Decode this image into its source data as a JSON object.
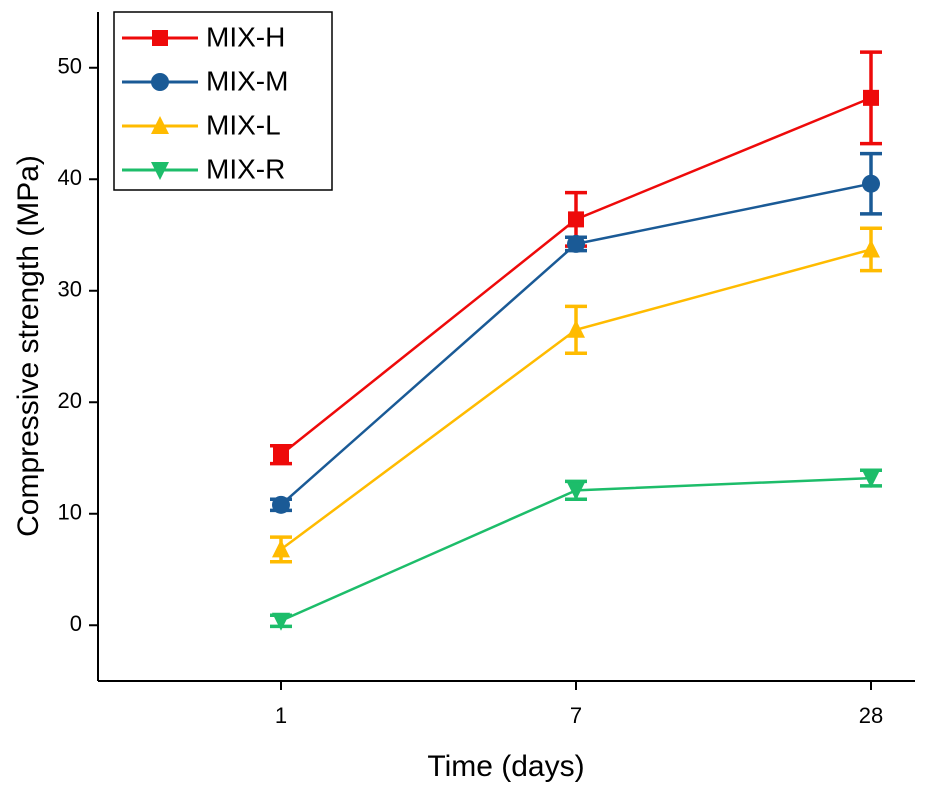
{
  "chart_data": {
    "type": "line",
    "x_label": "Time (days)",
    "y_label": "Compressive strength (MPa)",
    "categories": [
      "1",
      "7",
      "28"
    ],
    "ylim": [
      -5,
      55
    ],
    "yticks": [
      0,
      10,
      20,
      30,
      40,
      50
    ],
    "legend": "top-left",
    "series": [
      {
        "name": "MIX-H",
        "color": "#ee0a0a",
        "marker": "square",
        "values": [
          15.3,
          36.4,
          47.3
        ],
        "errors": [
          0.8,
          2.4,
          4.1
        ]
      },
      {
        "name": "MIX-M",
        "color": "#1a5a96",
        "marker": "circle",
        "values": [
          10.8,
          34.2,
          39.6
        ],
        "errors": [
          0.5,
          0.6,
          2.7
        ]
      },
      {
        "name": "MIX-L",
        "color": "#ffbb00",
        "marker": "triangle-up",
        "values": [
          6.8,
          26.5,
          33.7
        ],
        "errors": [
          1.1,
          2.1,
          1.9
        ]
      },
      {
        "name": "MIX-R",
        "color": "#1dbd6a",
        "marker": "triangle-down",
        "values": [
          0.4,
          12.1,
          13.2
        ],
        "errors": [
          0.5,
          0.8,
          0.7
        ]
      }
    ]
  }
}
